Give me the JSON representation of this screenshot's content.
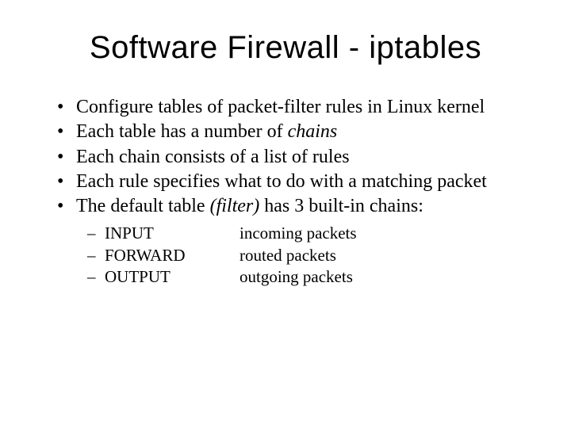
{
  "title": "Software Firewall - iptables",
  "bullets": {
    "b1": "Configure tables of packet-filter rules in Linux kernel",
    "b2_pre": "Each table has a number of ",
    "b2_em": "chains",
    "b3": "Each chain consists of a list of rules",
    "b4": "Each rule specifies what to do with a matching packet",
    "b5_pre": "The default table ",
    "b5_em": "(filter)",
    "b5_post": " has 3 built-in chains:"
  },
  "chains": [
    {
      "name": "INPUT",
      "desc": "incoming packets"
    },
    {
      "name": "FORWARD",
      "desc": "routed packets"
    },
    {
      "name": "OUTPUT",
      "desc": "outgoing packets"
    }
  ]
}
